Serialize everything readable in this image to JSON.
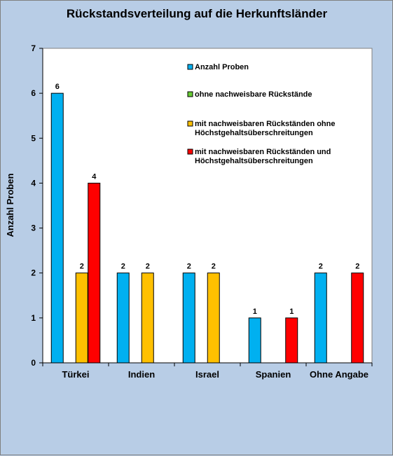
{
  "chart_data": {
    "type": "bar",
    "title": "Rückstandsverteilung auf die Herkunftsländer",
    "xlabel": "",
    "ylabel": "Anzahl Proben",
    "ylim": [
      0,
      7
    ],
    "yticks": [
      0,
      1,
      2,
      3,
      4,
      5,
      6,
      7
    ],
    "grid": false,
    "legend_position": "top-right",
    "categories": [
      "Türkei",
      "Indien",
      "Israel",
      "Spanien",
      "Ohne Angabe"
    ],
    "series": [
      {
        "name": "Anzahl Proben",
        "color": "#00b0f0",
        "values": [
          6,
          2,
          2,
          1,
          2
        ]
      },
      {
        "name": "ohne nachweisbare Rückstände",
        "color": "#66cc33",
        "values": [
          0,
          0,
          0,
          0,
          0
        ]
      },
      {
        "name": "mit nachweisbaren Rückständen ohne Höchstgehaltsüberschreitungen",
        "name_lines": [
          "mit nachweisbaren Rückständen ohne",
          "Höchstgehaltsüberschreitungen"
        ],
        "color": "#ffc000",
        "values": [
          2,
          2,
          2,
          0,
          0
        ]
      },
      {
        "name": "mit nachweisbaren Rückständen und Höchstgehaltsüberschreitungen",
        "name_lines": [
          "mit nachweisbaren Rückständen und",
          "Höchstgehaltsüberschreitungen"
        ],
        "color": "#ff0000",
        "values": [
          4,
          0,
          0,
          1,
          2
        ]
      }
    ]
  }
}
